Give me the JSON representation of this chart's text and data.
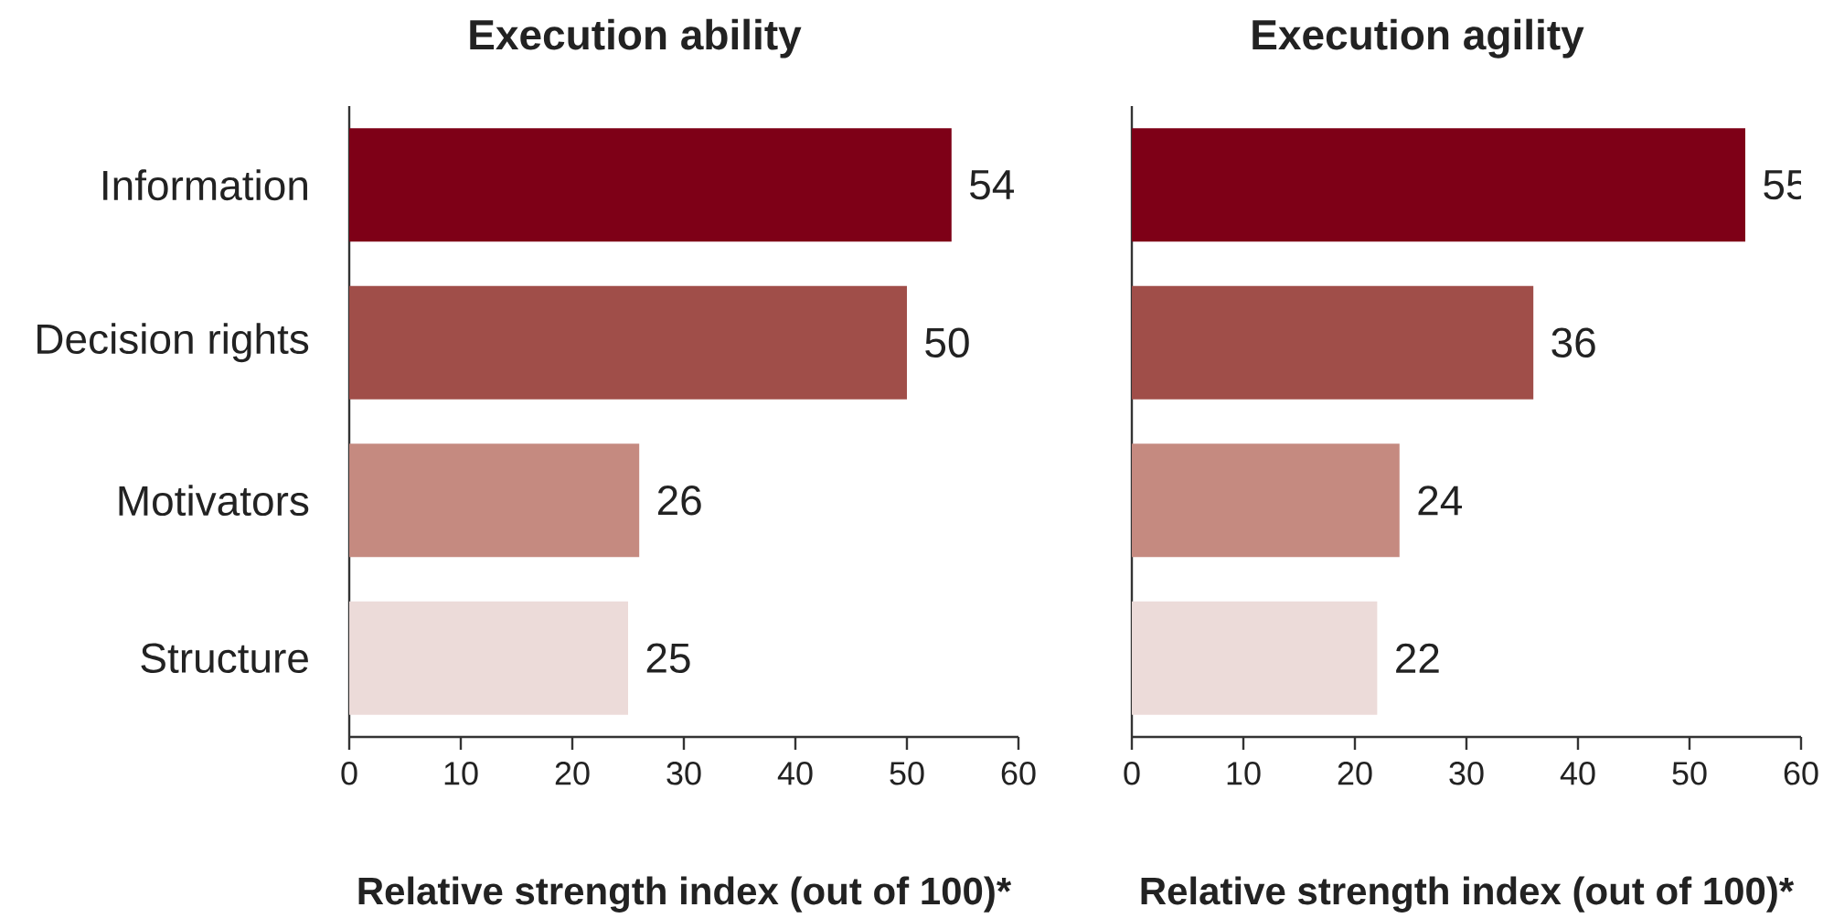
{
  "chart_data": [
    {
      "type": "bar",
      "orientation": "horizontal",
      "title": "Execution ability",
      "xlabel": "Relative strength index (out of 100)*",
      "categories": [
        "Information",
        "Decision rights",
        "Motivators",
        "Structure"
      ],
      "values": [
        54,
        50,
        26,
        25
      ],
      "colors": [
        "#7e0017",
        "#a04e49",
        "#c58a80",
        "#ecdbd9"
      ],
      "xlim": [
        0,
        60
      ],
      "xticks": [
        0,
        10,
        20,
        30,
        40,
        50,
        60
      ],
      "data_labels": true
    },
    {
      "type": "bar",
      "orientation": "horizontal",
      "title": "Execution agility",
      "xlabel": "Relative strength index (out of 100)*",
      "categories": [
        null,
        null,
        null,
        null
      ],
      "values": [
        55,
        36,
        24,
        22
      ],
      "colors": [
        "#7e0017",
        "#a04e49",
        "#c58a80",
        "#ecdbd9"
      ],
      "xlim": [
        0,
        60
      ],
      "xticks": [
        0,
        10,
        20,
        30,
        40,
        50,
        60
      ],
      "data_labels": true
    }
  ]
}
